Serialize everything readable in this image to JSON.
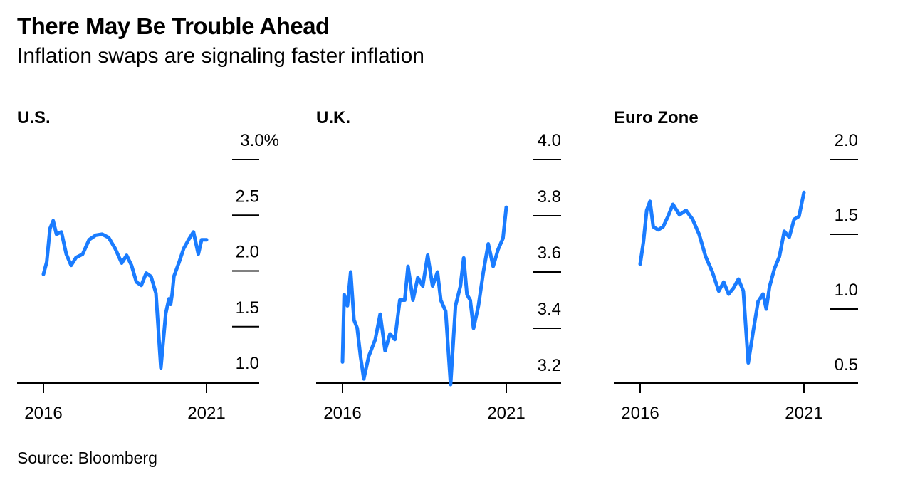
{
  "header": {
    "title": "There May Be Trouble Ahead",
    "subtitle": "Inflation swaps are signaling faster inflation"
  },
  "footer": {
    "source": "Source: Bloomberg"
  },
  "line_color": "#1a7cff",
  "chart_data": [
    {
      "type": "line",
      "title": "U.S.",
      "x_ticks": [
        "2016",
        "2021"
      ],
      "y_ticks": [
        "3.0%",
        "2.5",
        "2.0",
        "1.5",
        "1.0"
      ],
      "y_tick_values": [
        3.0,
        2.5,
        2.0,
        1.5,
        1.0
      ],
      "ylim": [
        0.85,
        3.0
      ],
      "xlim": [
        2016,
        2021
      ],
      "series": [
        {
          "name": "U.S.",
          "x": [
            2016.0,
            2016.1,
            2016.2,
            2016.3,
            2016.4,
            2016.55,
            2016.7,
            2016.85,
            2017.0,
            2017.2,
            2017.4,
            2017.6,
            2017.8,
            2018.0,
            2018.2,
            2018.4,
            2018.55,
            2018.7,
            2018.85,
            2019.0,
            2019.15,
            2019.3,
            2019.45,
            2019.6,
            2019.75,
            2019.85,
            2019.9,
            2019.95,
            2020.0,
            2020.15,
            2020.3,
            2020.45,
            2020.6,
            2020.75,
            2020.85,
            2021.0
          ],
          "values": [
            1.97,
            2.08,
            2.38,
            2.45,
            2.33,
            2.35,
            2.15,
            2.05,
            2.12,
            2.15,
            2.28,
            2.32,
            2.33,
            2.3,
            2.2,
            2.07,
            2.14,
            2.05,
            1.9,
            1.87,
            1.98,
            1.95,
            1.8,
            1.13,
            1.62,
            1.75,
            1.7,
            1.8,
            1.95,
            2.07,
            2.2,
            2.28,
            2.35,
            2.15,
            2.28,
            2.28
          ]
        }
      ]
    },
    {
      "type": "line",
      "title": "U.K.",
      "x_ticks": [
        "2016",
        "2021"
      ],
      "y_ticks": [
        "4.0",
        "3.8",
        "3.6",
        "3.4",
        "3.2"
      ],
      "y_tick_values": [
        4.0,
        3.8,
        3.6,
        3.4,
        3.2
      ],
      "ylim": [
        3.15,
        4.0
      ],
      "xlim": [
        2016,
        2021
      ],
      "series": [
        {
          "name": "U.K.",
          "x": [
            2016.0,
            2016.05,
            2016.15,
            2016.25,
            2016.35,
            2016.45,
            2016.55,
            2016.65,
            2016.8,
            2017.0,
            2017.15,
            2017.3,
            2017.45,
            2017.6,
            2017.75,
            2017.9,
            2018.0,
            2018.15,
            2018.3,
            2018.45,
            2018.6,
            2018.75,
            2018.9,
            2019.0,
            2019.15,
            2019.3,
            2019.45,
            2019.6,
            2019.7,
            2019.8,
            2019.9,
            2020.0,
            2020.15,
            2020.3,
            2020.45,
            2020.6,
            2020.75,
            2020.9,
            2021.0
          ],
          "values": [
            3.28,
            3.52,
            3.48,
            3.6,
            3.43,
            3.4,
            3.3,
            3.22,
            3.3,
            3.36,
            3.45,
            3.32,
            3.38,
            3.36,
            3.5,
            3.5,
            3.62,
            3.5,
            3.58,
            3.55,
            3.66,
            3.55,
            3.6,
            3.5,
            3.46,
            3.2,
            3.48,
            3.55,
            3.65,
            3.52,
            3.5,
            3.4,
            3.48,
            3.6,
            3.7,
            3.62,
            3.68,
            3.72,
            3.83
          ]
        }
      ]
    },
    {
      "type": "line",
      "title": "Euro Zone",
      "x_ticks": [
        "2016",
        "2021"
      ],
      "y_ticks": [
        "2.0",
        "1.5",
        "1.0",
        "0.5"
      ],
      "y_tick_values": [
        2.0,
        1.5,
        1.0,
        0.5
      ],
      "ylim": [
        0.5,
        2.0
      ],
      "xlim": [
        2016,
        2021
      ],
      "series": [
        {
          "name": "Euro Zone",
          "x": [
            2016.0,
            2016.1,
            2016.2,
            2016.3,
            2016.4,
            2016.55,
            2016.7,
            2016.85,
            2017.0,
            2017.2,
            2017.4,
            2017.6,
            2017.8,
            2018.0,
            2018.2,
            2018.4,
            2018.55,
            2018.7,
            2018.85,
            2019.0,
            2019.15,
            2019.3,
            2019.45,
            2019.6,
            2019.75,
            2019.85,
            2019.95,
            2020.1,
            2020.25,
            2020.4,
            2020.55,
            2020.7,
            2020.85,
            2021.0
          ],
          "values": [
            1.3,
            1.45,
            1.66,
            1.72,
            1.55,
            1.53,
            1.55,
            1.62,
            1.7,
            1.63,
            1.66,
            1.6,
            1.5,
            1.35,
            1.25,
            1.12,
            1.18,
            1.1,
            1.14,
            1.2,
            1.12,
            0.64,
            0.85,
            1.05,
            1.1,
            1.0,
            1.15,
            1.27,
            1.35,
            1.52,
            1.48,
            1.6,
            1.62,
            1.78
          ]
        }
      ]
    }
  ]
}
